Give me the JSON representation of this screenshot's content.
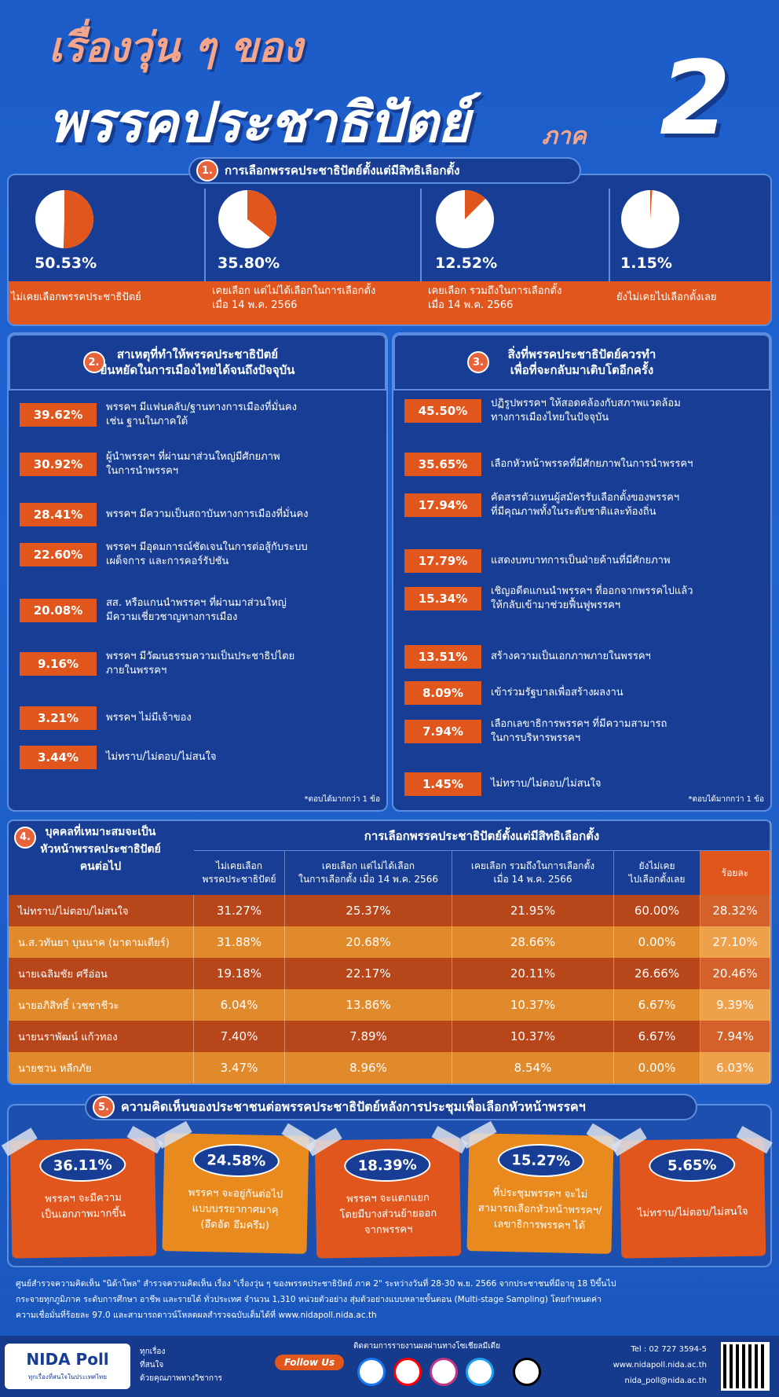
{
  "header": {
    "line1": "เรื่องวุ่น ๆ ของ",
    "line2": "พรรคประชาธิปัตย์",
    "part_word": "ภาค",
    "part_number": "2"
  },
  "section1": {
    "number": "1.",
    "title": "การเลือกพรรคประชาธิปัตย์ตั้งแต่มีสิทธิเลือกตั้ง",
    "type": "pie",
    "color": "#e0561c",
    "items": [
      {
        "value": 50.53,
        "value_label": "50.53%",
        "label_lines": [
          "ไม่เคยเลือกพรรคประชาธิปัตย์"
        ]
      },
      {
        "value": 35.8,
        "value_label": "35.80%",
        "label_lines": [
          "เคยเลือก แต่ไม่ได้เลือกในการเลือกตั้ง",
          "เมื่อ 14 พ.ค. 2566"
        ]
      },
      {
        "value": 12.52,
        "value_label": "12.52%",
        "label_lines": [
          "เคยเลือก รวมถึงในการเลือกตั้ง",
          "เมื่อ 14 พ.ค. 2566"
        ]
      },
      {
        "value": 1.15,
        "value_label": "1.15%",
        "label_lines": [
          "ยังไม่เคยไปเลือกตั้งเลย"
        ]
      }
    ]
  },
  "section2": {
    "number": "2.",
    "title_lines": [
      "สาเหตุที่ทำให้พรรคประชาธิปัตย์",
      "ยืนหยัดในการเมืองไทยได้จนถึงปัจจุบัน"
    ],
    "items": [
      {
        "percent": "39.62%",
        "text_lines": [
          "พรรคฯ มีแฟนคลับ/ฐานทางการเมืองที่มั่นคง",
          "เช่น ฐานในภาคใต้"
        ]
      },
      {
        "percent": "30.92%",
        "text_lines": [
          "ผู้นำพรรคฯ ที่ผ่านมาส่วนใหญ่มีศักยภาพ",
          "ในการนำพรรคฯ"
        ]
      },
      {
        "percent": "28.41%",
        "text_lines": [
          "พรรคฯ มีความเป็นสถาบันทางการเมืองที่มั่นคง"
        ]
      },
      {
        "percent": "22.60%",
        "text_lines": [
          "พรรคฯ มีอุดมการณ์ชัดเจนในการต่อสู้กับระบบ",
          "เผด็จการ และการคอร์รัปชัน"
        ]
      },
      {
        "percent": "20.08%",
        "text_lines": [
          "สส. หรือแกนนำพรรคฯ ที่ผ่านมาส่วนใหญ่",
          "มีความเชี่ยวชาญทางการเมือง"
        ]
      },
      {
        "percent": "9.16%",
        "text_lines": [
          "พรรคฯ มีวัฒนธรรมความเป็นประชาธิปไตย",
          "ภายในพรรคฯ"
        ]
      },
      {
        "percent": "3.21%",
        "text_lines": [
          "พรรคฯ ไม่มีเจ้าของ"
        ]
      },
      {
        "percent": "3.44%",
        "text_lines": [
          "ไม่ทราบ/ไม่ตอบ/ไม่สนใจ"
        ]
      }
    ],
    "note": "*ตอบได้มากกว่า 1 ข้อ"
  },
  "section3": {
    "number": "3.",
    "title_lines": [
      "สิ่งที่พรรคประชาธิปัตย์ควรทำ",
      "เพื่อที่จะกลับมาเติบโตอีกครั้ง"
    ],
    "items": [
      {
        "percent": "45.50%",
        "text_lines": [
          "ปฏิรูปพรรคฯ ให้สอดคล้องกับสภาพแวดล้อม",
          "ทางการเมืองไทยในปัจจุบัน"
        ]
      },
      {
        "percent": "35.65%",
        "text_lines": [
          "เลือกหัวหน้าพรรคที่มีศักยภาพในการนำพรรคฯ"
        ]
      },
      {
        "percent": "17.94%",
        "text_lines": [
          "คัดสรรตัวแทนผู้สมัครรับเลือกตั้งของพรรคฯ",
          "ที่มีคุณภาพทั้งในระดับชาติและท้องถิ่น"
        ]
      },
      {
        "percent": "17.79%",
        "text_lines": [
          "แสดงบทบาทการเป็นฝ่ายค้านที่มีศักยภาพ"
        ]
      },
      {
        "percent": "15.34%",
        "text_lines": [
          "เชิญอดีตแกนนำพรรคฯ ที่ออกจากพรรคไปแล้ว",
          "ให้กลับเข้ามาช่วยฟื้นฟูพรรคฯ"
        ]
      },
      {
        "percent": "13.51%",
        "text_lines": [
          "สร้างความเป็นเอกภาพภายในพรรคฯ"
        ]
      },
      {
        "percent": "8.09%",
        "text_lines": [
          "เข้าร่วมรัฐบาลเพื่อสร้างผลงาน"
        ]
      },
      {
        "percent": "7.94%",
        "text_lines": [
          "เลือกเลขาธิการพรรคฯ ที่มีความสามารถ",
          "ในการบริหารพรรคฯ"
        ]
      },
      {
        "percent": "1.45%",
        "text_lines": [
          "ไม่ทราบ/ไม่ตอบ/ไม่สนใจ"
        ]
      }
    ],
    "note": "*ตอบได้มากกว่า 1 ข้อ"
  },
  "section4": {
    "number": "4.",
    "title_lines": [
      "บุคคลที่เหมาะสมจะเป็น",
      "หัวหน้าพรรคประชาธิปัตย์",
      "คนต่อไป"
    ],
    "group_header": "การเลือกพรรคประชาธิปัตย์ตั้งแต่มีสิทธิเลือกตั้ง",
    "columns": [
      [
        "ไม่เคยเลือก",
        "พรรคประชาธิปัตย์"
      ],
      [
        "เคยเลือก แต่ไม่ได้เลือก",
        "ในการเลือกตั้ง เมื่อ 14 พ.ค. 2566"
      ],
      [
        "เคยเลือก รวมถึงในการเลือกตั้ง",
        "เมื่อ 14 พ.ค. 2566"
      ],
      [
        "ยังไม่เคย",
        "ไปเลือกตั้งเลย"
      ],
      [
        "ร้อยละ"
      ]
    ],
    "rows": [
      {
        "name": "ไม่ทราบ/ไม่ตอบ/ไม่สนใจ",
        "cells": [
          "31.27%",
          "25.37%",
          "21.95%",
          "60.00%",
          "28.32%"
        ]
      },
      {
        "name": "น.ส.วทันยา บุนนาค (มาดามเดียร์)",
        "cells": [
          "31.88%",
          "20.68%",
          "28.66%",
          "0.00%",
          "27.10%"
        ]
      },
      {
        "name": "นายเฉลิมชัย ศรีอ่อน",
        "cells": [
          "19.18%",
          "22.17%",
          "20.11%",
          "26.66%",
          "20.46%"
        ]
      },
      {
        "name": "นายอภิสิทธิ์ เวชชาชีวะ",
        "cells": [
          "6.04%",
          "13.86%",
          "10.37%",
          "6.67%",
          "9.39%"
        ]
      },
      {
        "name": "นายนราพัฒน์ แก้วทอง",
        "cells": [
          "7.40%",
          "7.89%",
          "10.37%",
          "6.67%",
          "7.94%"
        ]
      },
      {
        "name": "นายชวน หลีกภัย",
        "cells": [
          "3.47%",
          "8.96%",
          "8.54%",
          "0.00%",
          "6.03%"
        ]
      }
    ]
  },
  "section5": {
    "number": "5.",
    "title": "ความคิดเห็นของประชาชนต่อพรรคประชาธิปัตย์หลังการประชุมเพื่อเลือกหัวหน้าพรรคฯ",
    "items": [
      {
        "percent": "36.11%",
        "text_lines": [
          "พรรคฯ จะมีความ",
          "เป็นเอกภาพมากขึ้น"
        ]
      },
      {
        "percent": "24.58%",
        "text_lines": [
          "พรรคฯ จะอยู่กันต่อไป",
          "แบบบรรยากาศมาคุ",
          "(อึดอัด อึมครึม)"
        ]
      },
      {
        "percent": "18.39%",
        "text_lines": [
          "พรรคฯ จะแตกแยก",
          "โดยมีบางส่วนย้ายออก",
          "จากพรรคฯ"
        ]
      },
      {
        "percent": "15.27%",
        "text_lines": [
          "ที่ประชุมพรรคฯ จะไม่",
          "สามารถเลือกหัวหน้าพรรคฯ/",
          "เลขาธิการพรรคฯ ได้"
        ]
      },
      {
        "percent": "5.65%",
        "text_lines": [
          "ไม่ทราบ/ไม่ตอบ/ไม่สนใจ"
        ]
      }
    ]
  },
  "footnote": {
    "lines": [
      "ศูนย์สำรวจความคิดเห็น \"นิด้าโพล\" สำรวจความคิดเห็น เรื่อง \"เรื่องวุ่น ๆ ของพรรคประชาธิปัตย์ ภาค 2\" ระหว่างวันที่ 28-30 พ.ย. 2566 จากประชาชนที่มีอายุ 18 ปีขึ้นไป",
      "กระจายทุกภูมิภาค ระดับการศึกษา อาชีพ และรายได้ ทั่วประเทศ จำนวน 1,310 หน่วยตัวอย่าง สุ่มตัวอย่างแบบหลายขั้นตอน (Multi-stage Sampling) โดยกำหนดค่า",
      "ความเชื่อมั่นที่ร้อยละ 97.0 และสามารถดาวน์โหลดผลสำรวจฉบับเต็มได้ที่ www.nidapoll.nida.ac.th"
    ]
  },
  "footer": {
    "logo": "NIDA Poll",
    "logo_sub": "ทุกเรื่องที่สนใจในประเทศไทย",
    "slogan_lines": [
      "ทุกเรื่อง",
      "ที่สนใจ",
      "ด้วยคุณภาพทางวิชาการ"
    ],
    "follow": "Follow Us",
    "social_caption": "ติดตามการรายงานผลผ่านทางโซเชียลมีเดีย",
    "contact_lines": [
      "Tel : 02 727 3594-5",
      "www.nidapoll.nida.ac.th",
      "nida_poll@nida.ac.th"
    ]
  }
}
